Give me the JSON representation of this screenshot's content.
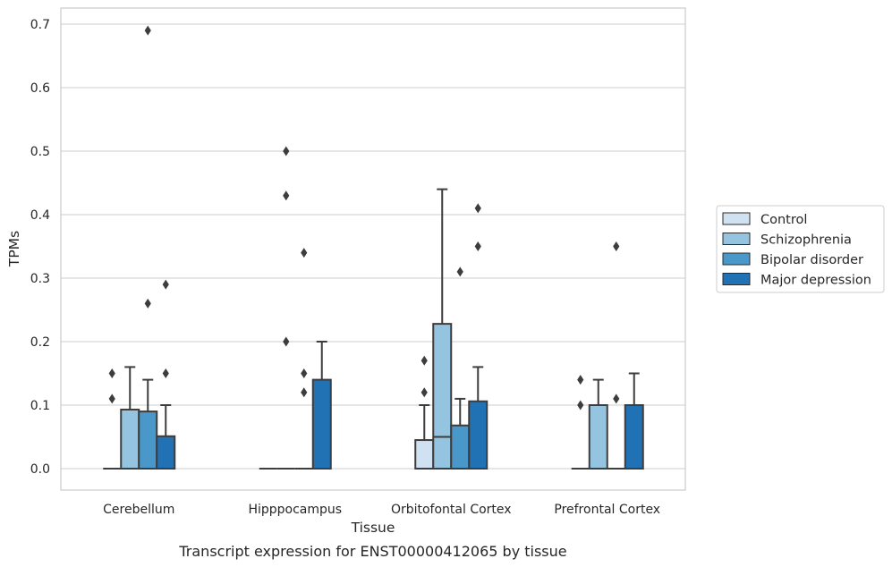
{
  "chart_data": {
    "type": "box",
    "title": "",
    "caption": "Transcript expression for ENST00000412065 by tissue",
    "xlabel": "Tissue",
    "ylabel": "TPMs",
    "ylim": [
      -0.034,
      0.725
    ],
    "yticks": [
      "0.0",
      "0.1",
      "0.2",
      "0.3",
      "0.4",
      "0.5",
      "0.6",
      "0.7"
    ],
    "grid": "horizontal",
    "legend_position": "right",
    "categories": [
      "Cerebellum",
      "Hipppocampus",
      "Orbitofontal Cortex",
      "Prefrontal Cortex"
    ],
    "series": [
      {
        "name": "Control",
        "color": "#d0e1f2",
        "boxes": [
          {
            "q1": 0,
            "median": 0,
            "q3": 0,
            "whisker_low": 0,
            "whisker_high": 0,
            "outliers": [
              0.11,
              0.15
            ]
          },
          {
            "q1": 0,
            "median": 0,
            "q3": 0,
            "whisker_low": 0,
            "whisker_high": 0,
            "outliers": []
          },
          {
            "q1": 0,
            "median": 0,
            "q3": 0.045,
            "whisker_low": 0,
            "whisker_high": 0.1,
            "outliers": [
              0.12,
              0.17
            ]
          },
          {
            "q1": 0,
            "median": 0,
            "q3": 0,
            "whisker_low": 0,
            "whisker_high": 0,
            "outliers": [
              0.1,
              0.14
            ]
          }
        ]
      },
      {
        "name": "Schizophrenia",
        "color": "#94c4df",
        "boxes": [
          {
            "q1": 0,
            "median": 0,
            "q3": 0.093,
            "whisker_low": 0,
            "whisker_high": 0.16,
            "outliers": []
          },
          {
            "q1": 0,
            "median": 0,
            "q3": 0,
            "whisker_low": 0,
            "whisker_high": 0,
            "outliers": [
              0.2,
              0.43,
              0.5
            ]
          },
          {
            "q1": 0,
            "median": 0.05,
            "q3": 0.228,
            "whisker_low": 0,
            "whisker_high": 0.44,
            "outliers": []
          },
          {
            "q1": 0,
            "median": 0,
            "q3": 0.1,
            "whisker_low": 0,
            "whisker_high": 0.14,
            "outliers": []
          }
        ]
      },
      {
        "name": "Bipolar disorder",
        "color": "#4a98c9",
        "boxes": [
          {
            "q1": 0,
            "median": 0,
            "q3": 0.09,
            "whisker_low": 0,
            "whisker_high": 0.14,
            "outliers": [
              0.26,
              0.69
            ]
          },
          {
            "q1": 0,
            "median": 0,
            "q3": 0,
            "whisker_low": 0,
            "whisker_high": 0,
            "outliers": [
              0.12,
              0.15,
              0.34
            ]
          },
          {
            "q1": 0,
            "median": 0,
            "q3": 0.068,
            "whisker_low": 0,
            "whisker_high": 0.11,
            "outliers": [
              0.31
            ]
          },
          {
            "q1": 0,
            "median": 0,
            "q3": 0,
            "whisker_low": 0,
            "whisker_high": 0,
            "outliers": [
              0.11,
              0.35
            ]
          }
        ]
      },
      {
        "name": "Major depression",
        "color": "#2171b5",
        "boxes": [
          {
            "q1": 0,
            "median": 0,
            "q3": 0.051,
            "whisker_low": 0,
            "whisker_high": 0.1,
            "outliers": [
              0.15,
              0.29
            ]
          },
          {
            "q1": 0,
            "median": 0,
            "q3": 0.14,
            "whisker_low": 0,
            "whisker_high": 0.2,
            "outliers": []
          },
          {
            "q1": 0,
            "median": 0,
            "q3": 0.106,
            "whisker_low": 0,
            "whisker_high": 0.16,
            "outliers": [
              0.35,
              0.41
            ]
          },
          {
            "q1": 0,
            "median": 0,
            "q3": 0.1,
            "whisker_low": 0,
            "whisker_high": 0.15,
            "outliers": []
          }
        ]
      }
    ]
  }
}
